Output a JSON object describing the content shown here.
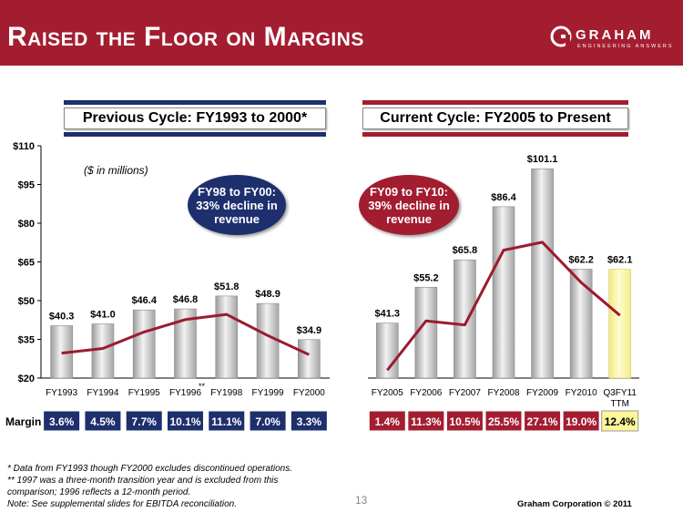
{
  "page_title": "Raised the Floor on Margins",
  "logo": {
    "name": "GRAHAM",
    "tagline": "ENGINEERING ANSWERS"
  },
  "left_panel_title": "Previous Cycle: FY1993 to 2000*",
  "right_panel_title": "Current Cycle: FY2005 to Present",
  "units_note": "($ in millions)",
  "bubble_left": {
    "line1": "FY98 to FY00:",
    "line2": "33% decline in",
    "line3": "revenue"
  },
  "bubble_right": {
    "line1": "FY09 to FY10:",
    "line2": "39% decline in",
    "line3": "revenue"
  },
  "margin_label": "Margin",
  "footnotes": {
    "line1": "* Data from FY1993 though FY2000 excludes discontinued operations.",
    "line2": "** 1997 was a three-month transition year and is excluded from this comparison; 1996 reflects a 12-month period.",
    "line3": "Note: See supplemental slides for EBITDA reconciliation."
  },
  "page_number": "13",
  "copyright": "Graham Corporation © 2011",
  "colors": {
    "brand_red": "#a31d30",
    "navy": "#1e2f6e",
    "highlight": "#fdf79a"
  },
  "chart_data": {
    "type": "bar",
    "ylim": [
      20,
      110
    ],
    "yticks": [
      "$20",
      "$35",
      "$50",
      "$65",
      "$80",
      "$95",
      "$110"
    ],
    "ytick_values": [
      20,
      35,
      50,
      65,
      80,
      95,
      110
    ],
    "groups": [
      {
        "name": "Previous Cycle: FY1993 to 2000*",
        "categories": [
          "FY1993",
          "FY1994",
          "FY1995",
          "FY1996",
          "FY1998",
          "FY1999",
          "FY2000"
        ],
        "category_marks": [
          "",
          "",
          "",
          "**",
          "",
          "",
          ""
        ],
        "values": [
          40.3,
          41.0,
          46.4,
          46.8,
          51.8,
          48.9,
          34.9
        ],
        "value_labels": [
          "$40.3",
          "$41.0",
          "$46.4",
          "$46.8",
          "$51.8",
          "$48.9",
          "$34.9"
        ],
        "margins": [
          3.6,
          4.5,
          7.7,
          10.1,
          11.1,
          7.0,
          3.3
        ],
        "margin_labels": [
          "3.6%",
          "4.5%",
          "7.7%",
          "10.1%",
          "11.1%",
          "7.0%",
          "3.3%"
        ],
        "margin_color": "#1e2f6e"
      },
      {
        "name": "Current Cycle: FY2005 to Present",
        "categories": [
          "FY2005",
          "FY2006",
          "FY2007",
          "FY2008",
          "FY2009",
          "FY2010",
          "Q3FY11 TTM"
        ],
        "category_marks": [
          "",
          "",
          "",
          "",
          "",
          "",
          ""
        ],
        "values": [
          41.3,
          55.2,
          65.8,
          86.4,
          101.1,
          62.2,
          62.1
        ],
        "value_labels": [
          "$41.3",
          "$55.2",
          "$65.8",
          "$86.4",
          "$101.1",
          "$62.2",
          "$62.1"
        ],
        "margins": [
          1.4,
          11.3,
          10.5,
          25.5,
          27.1,
          19.0,
          12.4
        ],
        "margin_labels": [
          "1.4%",
          "11.3%",
          "10.5%",
          "25.5%",
          "27.1%",
          "19.0%",
          "12.4%"
        ],
        "margin_color": "#a31d30",
        "highlight_last": true
      }
    ],
    "series": [
      {
        "name": "Revenue",
        "kind": "bar"
      },
      {
        "name": "Margin",
        "kind": "line"
      }
    ]
  }
}
